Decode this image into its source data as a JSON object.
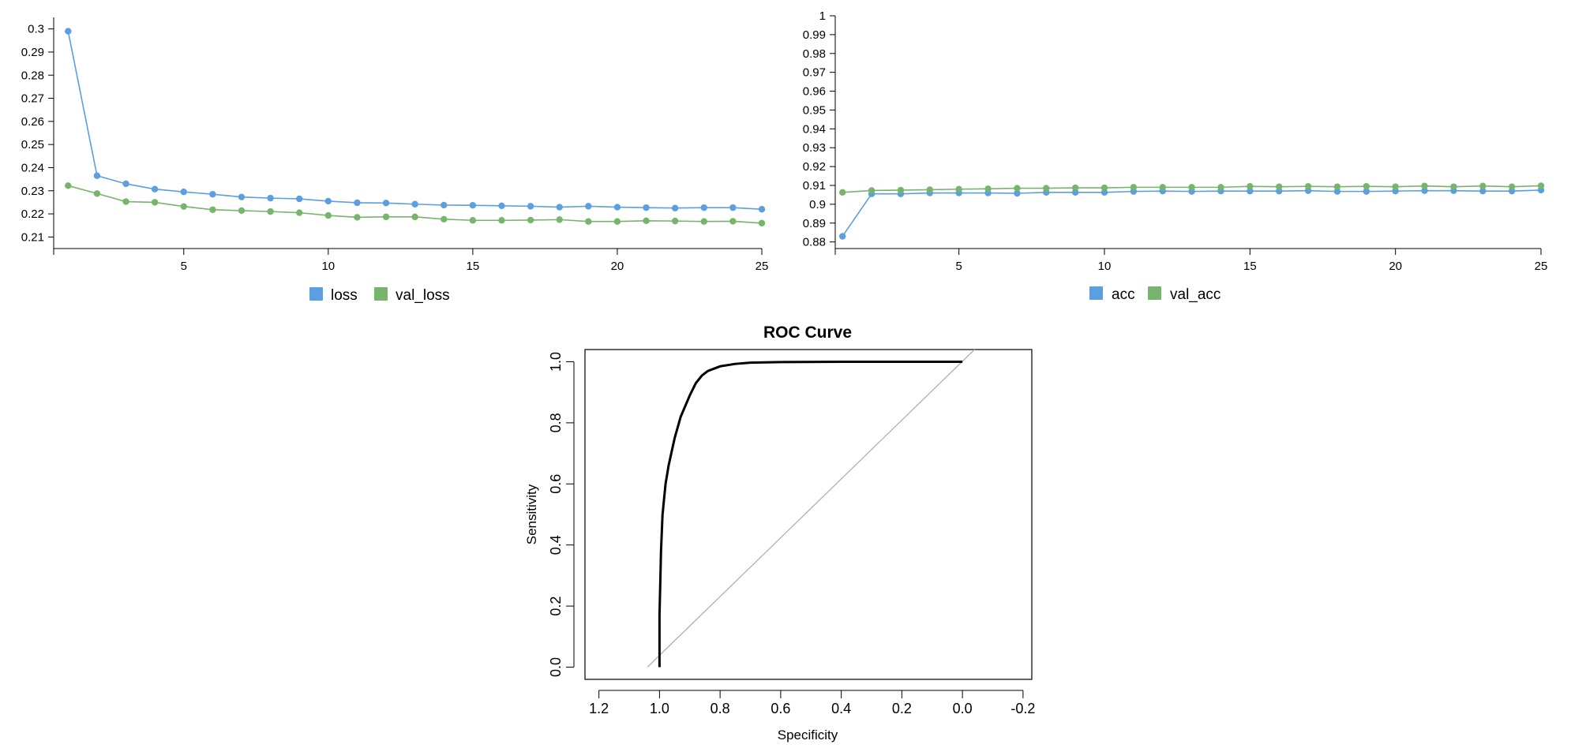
{
  "colors": {
    "blue": "#5b9fe0",
    "green": "#77b56c",
    "roc": "#000000",
    "diag": "#b0b0b0"
  },
  "chart_data": [
    {
      "type": "line",
      "x": [
        1,
        2,
        3,
        4,
        5,
        6,
        7,
        8,
        9,
        10,
        11,
        12,
        13,
        14,
        15,
        16,
        17,
        18,
        19,
        20,
        21,
        22,
        23,
        24,
        25
      ],
      "xticks": [
        5,
        10,
        15,
        20,
        25
      ],
      "yticks": [
        0.21,
        0.22,
        0.23,
        0.24,
        0.25,
        0.26,
        0.27,
        0.28,
        0.29,
        0.3
      ],
      "xlim": [
        0.5,
        25
      ],
      "ylim": [
        0.205,
        0.305
      ],
      "series": [
        {
          "name": "loss",
          "color": "#5b9fe0",
          "values": [
            0.299,
            0.2365,
            0.233,
            0.2307,
            0.2295,
            0.2285,
            0.2273,
            0.2268,
            0.2265,
            0.2255,
            0.2248,
            0.2247,
            0.2242,
            0.2238,
            0.2237,
            0.2235,
            0.2233,
            0.2229,
            0.2233,
            0.2229,
            0.2227,
            0.2225,
            0.2227,
            0.2227,
            0.222
          ]
        },
        {
          "name": "val_loss",
          "color": "#77b56c",
          "values": [
            0.2322,
            0.2288,
            0.2253,
            0.225,
            0.2232,
            0.2218,
            0.2214,
            0.221,
            0.2205,
            0.2193,
            0.2185,
            0.2187,
            0.2187,
            0.2177,
            0.2172,
            0.2172,
            0.2173,
            0.2175,
            0.2167,
            0.2167,
            0.217,
            0.2169,
            0.2167,
            0.2168,
            0.216
          ]
        }
      ],
      "legend_position": "bottom-center"
    },
    {
      "type": "line",
      "x": [
        1,
        2,
        3,
        4,
        5,
        6,
        7,
        8,
        9,
        10,
        11,
        12,
        13,
        14,
        15,
        16,
        17,
        18,
        19,
        20,
        21,
        22,
        23,
        24,
        25
      ],
      "xticks": [
        5,
        10,
        15,
        20,
        25
      ],
      "yticks": [
        0.88,
        0.89,
        0.9,
        0.91,
        0.92,
        0.93,
        0.94,
        0.95,
        0.96,
        0.97,
        0.98,
        0.99,
        1
      ],
      "xlim": [
        0.75,
        25
      ],
      "ylim": [
        0.8765,
        1
      ],
      "series": [
        {
          "name": "acc",
          "color": "#5b9fe0",
          "values": [
            0.883,
            0.9055,
            0.9055,
            0.906,
            0.906,
            0.906,
            0.9058,
            0.9063,
            0.9063,
            0.9063,
            0.9068,
            0.907,
            0.9068,
            0.907,
            0.907,
            0.907,
            0.9072,
            0.9068,
            0.9068,
            0.907,
            0.9072,
            0.9072,
            0.907,
            0.907,
            0.9075
          ]
        },
        {
          "name": "val_acc",
          "color": "#77b56c",
          "values": [
            0.9063,
            0.9073,
            0.9075,
            0.9077,
            0.908,
            0.9082,
            0.9085,
            0.9085,
            0.9087,
            0.9087,
            0.909,
            0.909,
            0.909,
            0.909,
            0.9095,
            0.9093,
            0.9095,
            0.9093,
            0.9095,
            0.9093,
            0.9097,
            0.9093,
            0.9097,
            0.9093,
            0.9098
          ]
        }
      ],
      "legend_position": "bottom-center"
    },
    {
      "type": "line",
      "title": "ROC Curve",
      "xlabel": "Specificity",
      "ylabel": "Sensitivity",
      "xticks": [
        "1.2",
        "1.0",
        "0.8",
        "0.6",
        "0.4",
        "0.2",
        "0.0",
        "-0.2"
      ],
      "yticks": [
        "0.0",
        "0.2",
        "0.4",
        "0.6",
        "0.8",
        "1.0"
      ],
      "xlim": [
        1.246,
        -0.229
      ],
      "ylim": [
        -0.04,
        1.04
      ],
      "series": [
        {
          "name": "",
          "color": "#000000",
          "x": [
            1.0,
            1.0,
            0.995,
            0.99,
            0.98,
            0.97,
            0.95,
            0.93,
            0.9,
            0.88,
            0.86,
            0.84,
            0.8,
            0.75,
            0.7,
            0.6,
            0.4,
            0.2,
            0.0
          ],
          "y": [
            0.0,
            0.17,
            0.38,
            0.5,
            0.6,
            0.66,
            0.75,
            0.82,
            0.89,
            0.93,
            0.955,
            0.97,
            0.985,
            0.993,
            0.997,
            0.999,
            1.0,
            1.0,
            1.0
          ]
        }
      ],
      "reference_line": {
        "from": [
          1.04,
          0.0
        ],
        "to": [
          -0.04,
          1.04
        ]
      }
    }
  ]
}
